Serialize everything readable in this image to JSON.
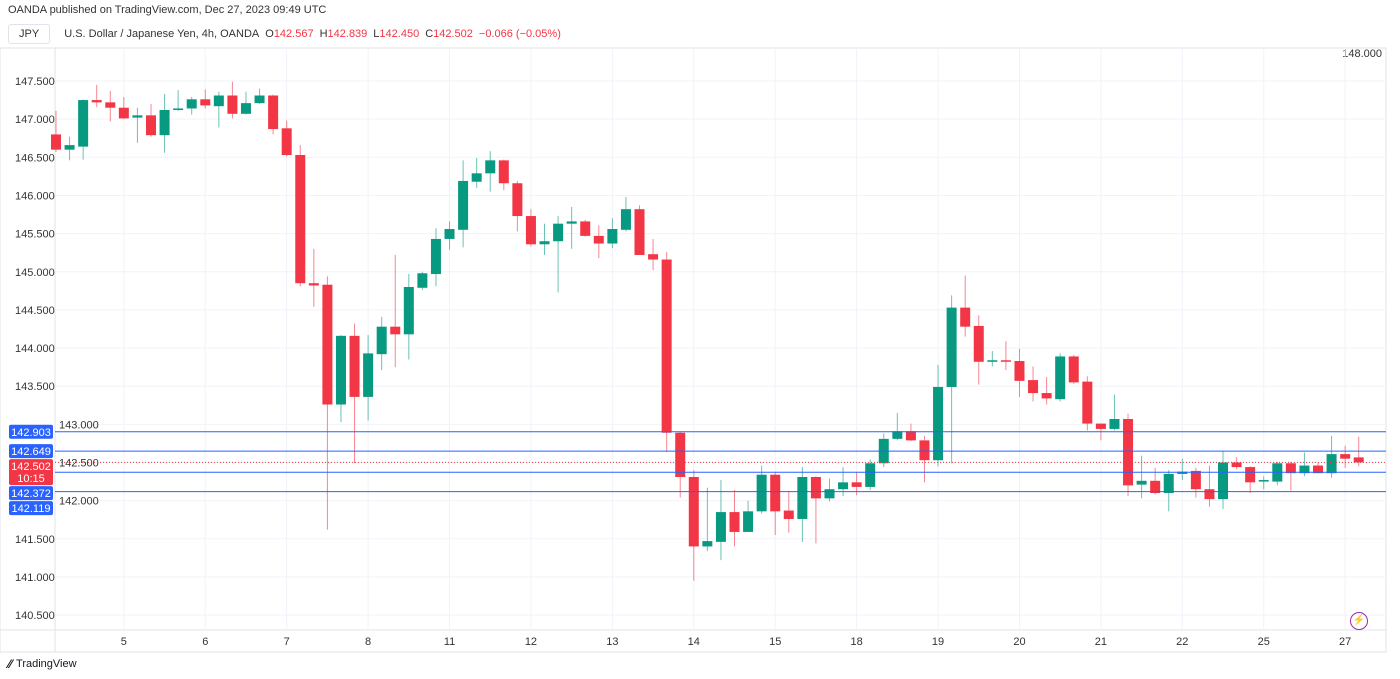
{
  "header": {
    "published": "OANDA published on TradingView.com, Dec 27, 2023 09:49 UTC",
    "symbol_button": "JPY",
    "description": "U.S. Dollar / Japanese Yen, 4h, OANDA",
    "o_label": "O",
    "o_value": "142.567",
    "h_label": "H",
    "h_value": "142.839",
    "l_label": "L",
    "l_value": "142.450",
    "c_label": "C",
    "c_value": "142.502",
    "change": "−0.066 (−0.05%)"
  },
  "footer": {
    "logo_text": "TradingView"
  },
  "colors": {
    "up": "#089981",
    "down": "#F23645",
    "hline": "#2962FF",
    "grid": "#f0f3fa"
  },
  "chart_data": {
    "type": "candlestick",
    "title": "U.S. Dollar / Japanese Yen, 4h, OANDA",
    "ylim": [
      140.35,
      148.05
    ],
    "yticks": [
      "148.000",
      "147.500",
      "147.000",
      "146.500",
      "146.000",
      "145.500",
      "145.000",
      "144.500",
      "144.000",
      "143.500",
      "143.000",
      "142.500",
      "142.000",
      "141.500",
      "141.000",
      "140.500"
    ],
    "xticks": [
      {
        "label": "5",
        "index": 5
      },
      {
        "label": "6",
        "index": 11
      },
      {
        "label": "7",
        "index": 17
      },
      {
        "label": "8",
        "index": 23
      },
      {
        "label": "11",
        "index": 29
      },
      {
        "label": "12",
        "index": 35
      },
      {
        "label": "13",
        "index": 41
      },
      {
        "label": "14",
        "index": 47
      },
      {
        "label": "15",
        "index": 53
      },
      {
        "label": "18",
        "index": 59
      },
      {
        "label": "19",
        "index": 65
      },
      {
        "label": "20",
        "index": 71
      },
      {
        "label": "21",
        "index": 77
      },
      {
        "label": "22",
        "index": 83
      },
      {
        "label": "25",
        "index": 89
      },
      {
        "label": "27",
        "index": 95
      }
    ],
    "ohlc_fields": [
      "open",
      "high",
      "low",
      "close"
    ],
    "candles": [
      [
        146.8,
        147.11,
        146.57,
        146.6
      ],
      [
        146.6,
        146.77,
        146.46,
        146.66
      ],
      [
        146.64,
        147.26,
        146.47,
        147.25
      ],
      [
        147.25,
        147.45,
        147.16,
        147.22
      ],
      [
        147.22,
        147.37,
        146.97,
        147.15
      ],
      [
        147.15,
        147.29,
        147.0,
        147.01
      ],
      [
        147.02,
        147.15,
        146.69,
        147.05
      ],
      [
        147.05,
        147.2,
        146.77,
        146.79
      ],
      [
        146.79,
        147.33,
        146.56,
        147.12
      ],
      [
        147.12,
        147.38,
        147.11,
        147.14
      ],
      [
        147.14,
        147.29,
        147.06,
        147.26
      ],
      [
        147.26,
        147.39,
        147.14,
        147.18
      ],
      [
        147.17,
        147.36,
        146.89,
        147.31
      ],
      [
        147.31,
        147.49,
        147.01,
        147.07
      ],
      [
        147.07,
        147.36,
        147.06,
        147.21
      ],
      [
        147.21,
        147.4,
        147.2,
        147.31
      ],
      [
        147.31,
        147.32,
        146.8,
        146.87
      ],
      [
        146.88,
        146.98,
        146.51,
        146.53
      ],
      [
        146.53,
        146.66,
        144.81,
        144.85
      ],
      [
        144.85,
        145.3,
        144.54,
        144.82
      ],
      [
        144.83,
        144.94,
        141.62,
        143.26
      ],
      [
        143.26,
        144.17,
        143.03,
        144.16
      ],
      [
        144.16,
        144.32,
        142.49,
        143.36
      ],
      [
        143.36,
        144.17,
        143.05,
        143.93
      ],
      [
        143.92,
        144.41,
        143.71,
        144.28
      ],
      [
        144.28,
        145.22,
        143.75,
        144.18
      ],
      [
        144.18,
        144.97,
        143.85,
        144.8
      ],
      [
        144.79,
        145.0,
        144.76,
        144.98
      ],
      [
        144.97,
        145.57,
        144.81,
        145.43
      ],
      [
        145.43,
        145.66,
        145.29,
        145.56
      ],
      [
        145.55,
        146.46,
        145.32,
        146.19
      ],
      [
        146.18,
        146.49,
        146.1,
        146.29
      ],
      [
        146.29,
        146.58,
        146.05,
        146.46
      ],
      [
        146.46,
        146.47,
        146.07,
        146.16
      ],
      [
        146.16,
        146.19,
        145.53,
        145.73
      ],
      [
        145.73,
        145.82,
        145.33,
        145.36
      ],
      [
        145.36,
        145.63,
        145.22,
        145.4
      ],
      [
        145.4,
        145.73,
        144.73,
        145.63
      ],
      [
        145.63,
        145.85,
        145.3,
        145.66
      ],
      [
        145.66,
        145.68,
        145.46,
        145.47
      ],
      [
        145.47,
        145.61,
        145.18,
        145.37
      ],
      [
        145.37,
        145.7,
        145.31,
        145.56
      ],
      [
        145.55,
        145.98,
        145.53,
        145.82
      ],
      [
        145.82,
        145.87,
        145.22,
        145.22
      ],
      [
        145.23,
        145.43,
        145.02,
        145.16
      ],
      [
        145.16,
        145.26,
        142.64,
        142.89
      ],
      [
        142.89,
        142.91,
        142.04,
        142.31
      ],
      [
        142.31,
        142.4,
        140.95,
        141.4
      ],
      [
        141.4,
        142.17,
        141.34,
        141.47
      ],
      [
        141.46,
        142.27,
        141.22,
        141.85
      ],
      [
        141.85,
        142.14,
        141.4,
        141.59
      ],
      [
        141.59,
        142.0,
        141.59,
        141.86
      ],
      [
        141.86,
        142.46,
        141.83,
        142.34
      ],
      [
        142.34,
        142.38,
        141.55,
        141.86
      ],
      [
        141.87,
        142.12,
        141.58,
        141.76
      ],
      [
        141.76,
        142.44,
        141.46,
        142.31
      ],
      [
        142.31,
        142.32,
        141.44,
        142.03
      ],
      [
        142.03,
        142.29,
        141.99,
        142.15
      ],
      [
        142.15,
        142.44,
        142.06,
        142.24
      ],
      [
        142.24,
        142.38,
        142.07,
        142.18
      ],
      [
        142.18,
        142.54,
        142.14,
        142.49
      ],
      [
        142.49,
        142.88,
        142.44,
        142.81
      ],
      [
        142.81,
        143.15,
        142.79,
        142.91
      ],
      [
        142.91,
        143.01,
        142.78,
        142.79
      ],
      [
        142.79,
        142.85,
        142.24,
        142.53
      ],
      [
        142.53,
        143.78,
        142.45,
        143.49
      ],
      [
        143.49,
        144.69,
        142.49,
        144.53
      ],
      [
        144.53,
        144.95,
        144.15,
        144.28
      ],
      [
        144.29,
        144.43,
        143.52,
        143.82
      ],
      [
        143.82,
        143.96,
        143.76,
        143.84
      ],
      [
        143.84,
        144.09,
        143.71,
        143.82
      ],
      [
        143.83,
        143.99,
        143.36,
        143.57
      ],
      [
        143.58,
        143.76,
        143.3,
        143.41
      ],
      [
        143.41,
        143.62,
        143.26,
        143.34
      ],
      [
        143.33,
        143.93,
        143.3,
        143.89
      ],
      [
        143.89,
        143.91,
        143.53,
        143.55
      ],
      [
        143.56,
        143.63,
        142.92,
        143.01
      ],
      [
        143.01,
        143.01,
        142.79,
        142.94
      ],
      [
        142.94,
        143.39,
        142.92,
        143.07
      ],
      [
        143.07,
        143.14,
        142.06,
        142.2
      ],
      [
        142.21,
        142.59,
        142.03,
        142.26
      ],
      [
        142.26,
        142.43,
        142.08,
        142.1
      ],
      [
        142.1,
        142.4,
        141.86,
        142.35
      ],
      [
        142.35,
        142.55,
        142.27,
        142.38
      ],
      [
        142.39,
        142.43,
        142.04,
        142.15
      ],
      [
        142.15,
        142.46,
        141.92,
        142.02
      ],
      [
        142.02,
        142.65,
        141.89,
        142.5
      ],
      [
        142.5,
        142.57,
        142.41,
        142.44
      ],
      [
        142.44,
        142.45,
        142.1,
        142.24
      ],
      [
        142.25,
        142.32,
        142.15,
        142.27
      ],
      [
        142.25,
        142.51,
        142.2,
        142.49
      ],
      [
        142.49,
        142.51,
        142.13,
        142.36
      ],
      [
        142.36,
        142.63,
        142.32,
        142.46
      ],
      [
        142.46,
        142.5,
        142.36,
        142.36
      ],
      [
        142.36,
        142.85,
        142.3,
        142.61
      ],
      [
        142.61,
        142.72,
        142.43,
        142.55
      ],
      [
        142.567,
        142.839,
        142.45,
        142.502
      ]
    ],
    "horizontal_lines": [
      {
        "label": "142.903",
        "value": 142.903
      },
      {
        "label": "142.649",
        "value": 142.649
      },
      {
        "label": "142.372",
        "value": 142.372
      },
      {
        "label": "142.119",
        "value": 142.119
      }
    ],
    "last_price": {
      "label": "142.502",
      "value": 142.502,
      "countdown": "10:15"
    }
  }
}
